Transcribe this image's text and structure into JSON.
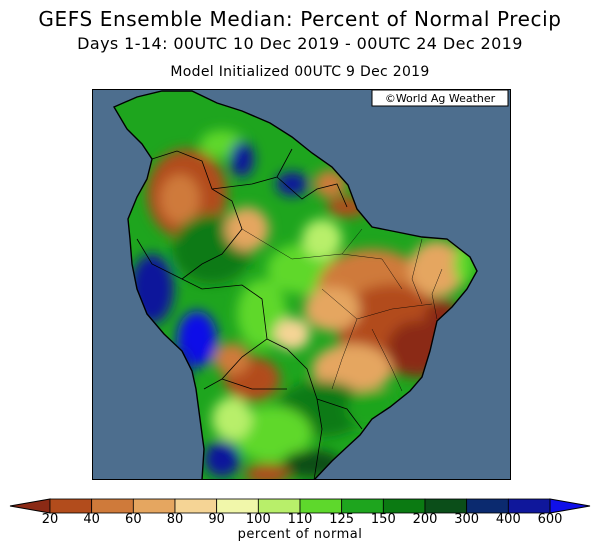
{
  "header": {
    "title": "GEFS Ensemble Median: Percent of Normal Precip",
    "subtitle": "Days 1-14: 00UTC 10 Dec 2019 - 00UTC 24 Dec 2019",
    "init": "Model Initialized 00UTC 9 Dec 2019"
  },
  "map": {
    "credit": "©World Ag Weather",
    "ocean_color": "#4d6e8e",
    "region": "South America",
    "regions": [
      {
        "feature": "colombia-venezuela-dry",
        "percent": 40
      },
      {
        "feature": "northwest-amazon-wet",
        "percent": 200
      },
      {
        "feature": "central-brazil-dry",
        "percent": 60
      },
      {
        "feature": "northeast-brazil-very-dry",
        "percent": 20
      },
      {
        "feature": "pacific-andes-very-wet",
        "percent": 600
      },
      {
        "feature": "southern-brazil-wet",
        "percent": 150
      },
      {
        "feature": "argentina-mixed",
        "percent": 110
      }
    ]
  },
  "legend": {
    "colors": [
      "#8b2a15",
      "#b24c1c",
      "#cf7a3a",
      "#e5a660",
      "#f5d495",
      "#f1f7aa",
      "#b8ef6a",
      "#5ed82c",
      "#1ea51e",
      "#0b7a12",
      "#0b4e19",
      "#0b2a6f",
      "#0f179b",
      "#1010e8"
    ],
    "ticks": [
      "20",
      "40",
      "60",
      "80",
      "90",
      "100",
      "110",
      "125",
      "150",
      "200",
      "300",
      "400",
      "600"
    ],
    "unit_label": "percent of normal"
  }
}
